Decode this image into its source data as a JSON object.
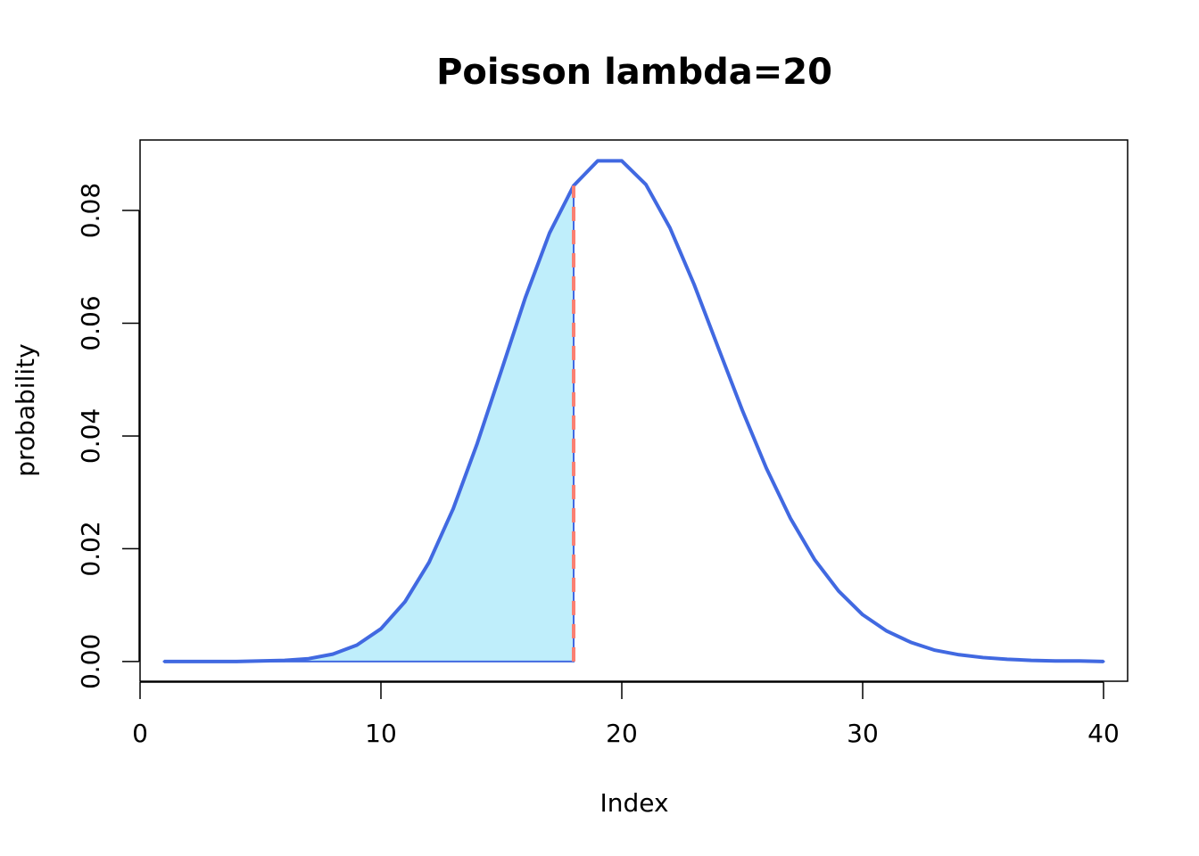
{
  "chart_data": {
    "type": "line",
    "title": "Poisson lambda=20",
    "xlabel": "Index",
    "ylabel": "probability",
    "xlim": [
      0,
      41
    ],
    "ylim": [
      -0.0035,
      0.0925
    ],
    "x_ticks": [
      0,
      10,
      20,
      30,
      40
    ],
    "x_tick_labels": [
      "0",
      "10",
      "20",
      "30",
      "40"
    ],
    "y_ticks": [
      0,
      0.02,
      0.04,
      0.06,
      0.08
    ],
    "y_tick_labels": [
      "0.00",
      "0.02",
      "0.04",
      "0.06",
      "0.08"
    ],
    "grid": false,
    "series": [
      {
        "x": [
          1,
          2,
          3,
          4,
          5,
          6,
          7,
          8,
          9,
          10,
          11,
          12,
          13,
          14,
          15,
          16,
          17,
          18,
          19,
          20,
          21,
          22,
          23,
          24,
          25,
          26,
          27,
          28,
          29,
          30,
          31,
          32,
          33,
          34,
          35,
          36,
          37,
          38,
          39,
          40
        ],
        "values": [
          0.0,
          0.0,
          0.0,
          0.0,
          0.0001,
          0.0002,
          0.0005,
          0.0013,
          0.0029,
          0.0058,
          0.0106,
          0.0176,
          0.0271,
          0.0387,
          0.0516,
          0.0646,
          0.076,
          0.0844,
          0.0888,
          0.0888,
          0.0846,
          0.0769,
          0.0669,
          0.0557,
          0.0446,
          0.0343,
          0.0254,
          0.0181,
          0.0125,
          0.0083,
          0.0054,
          0.0034,
          0.002,
          0.0012,
          0.0007,
          0.0004,
          0.0002,
          0.0001,
          0.0001,
          0.0
        ],
        "color": "#4169E1"
      }
    ],
    "shaded_region": {
      "x_from": 1,
      "x_to": 18,
      "color": "#BFEEFB"
    },
    "reference_line": {
      "x": 18,
      "style": "dashed",
      "color": "#FA8072"
    }
  }
}
